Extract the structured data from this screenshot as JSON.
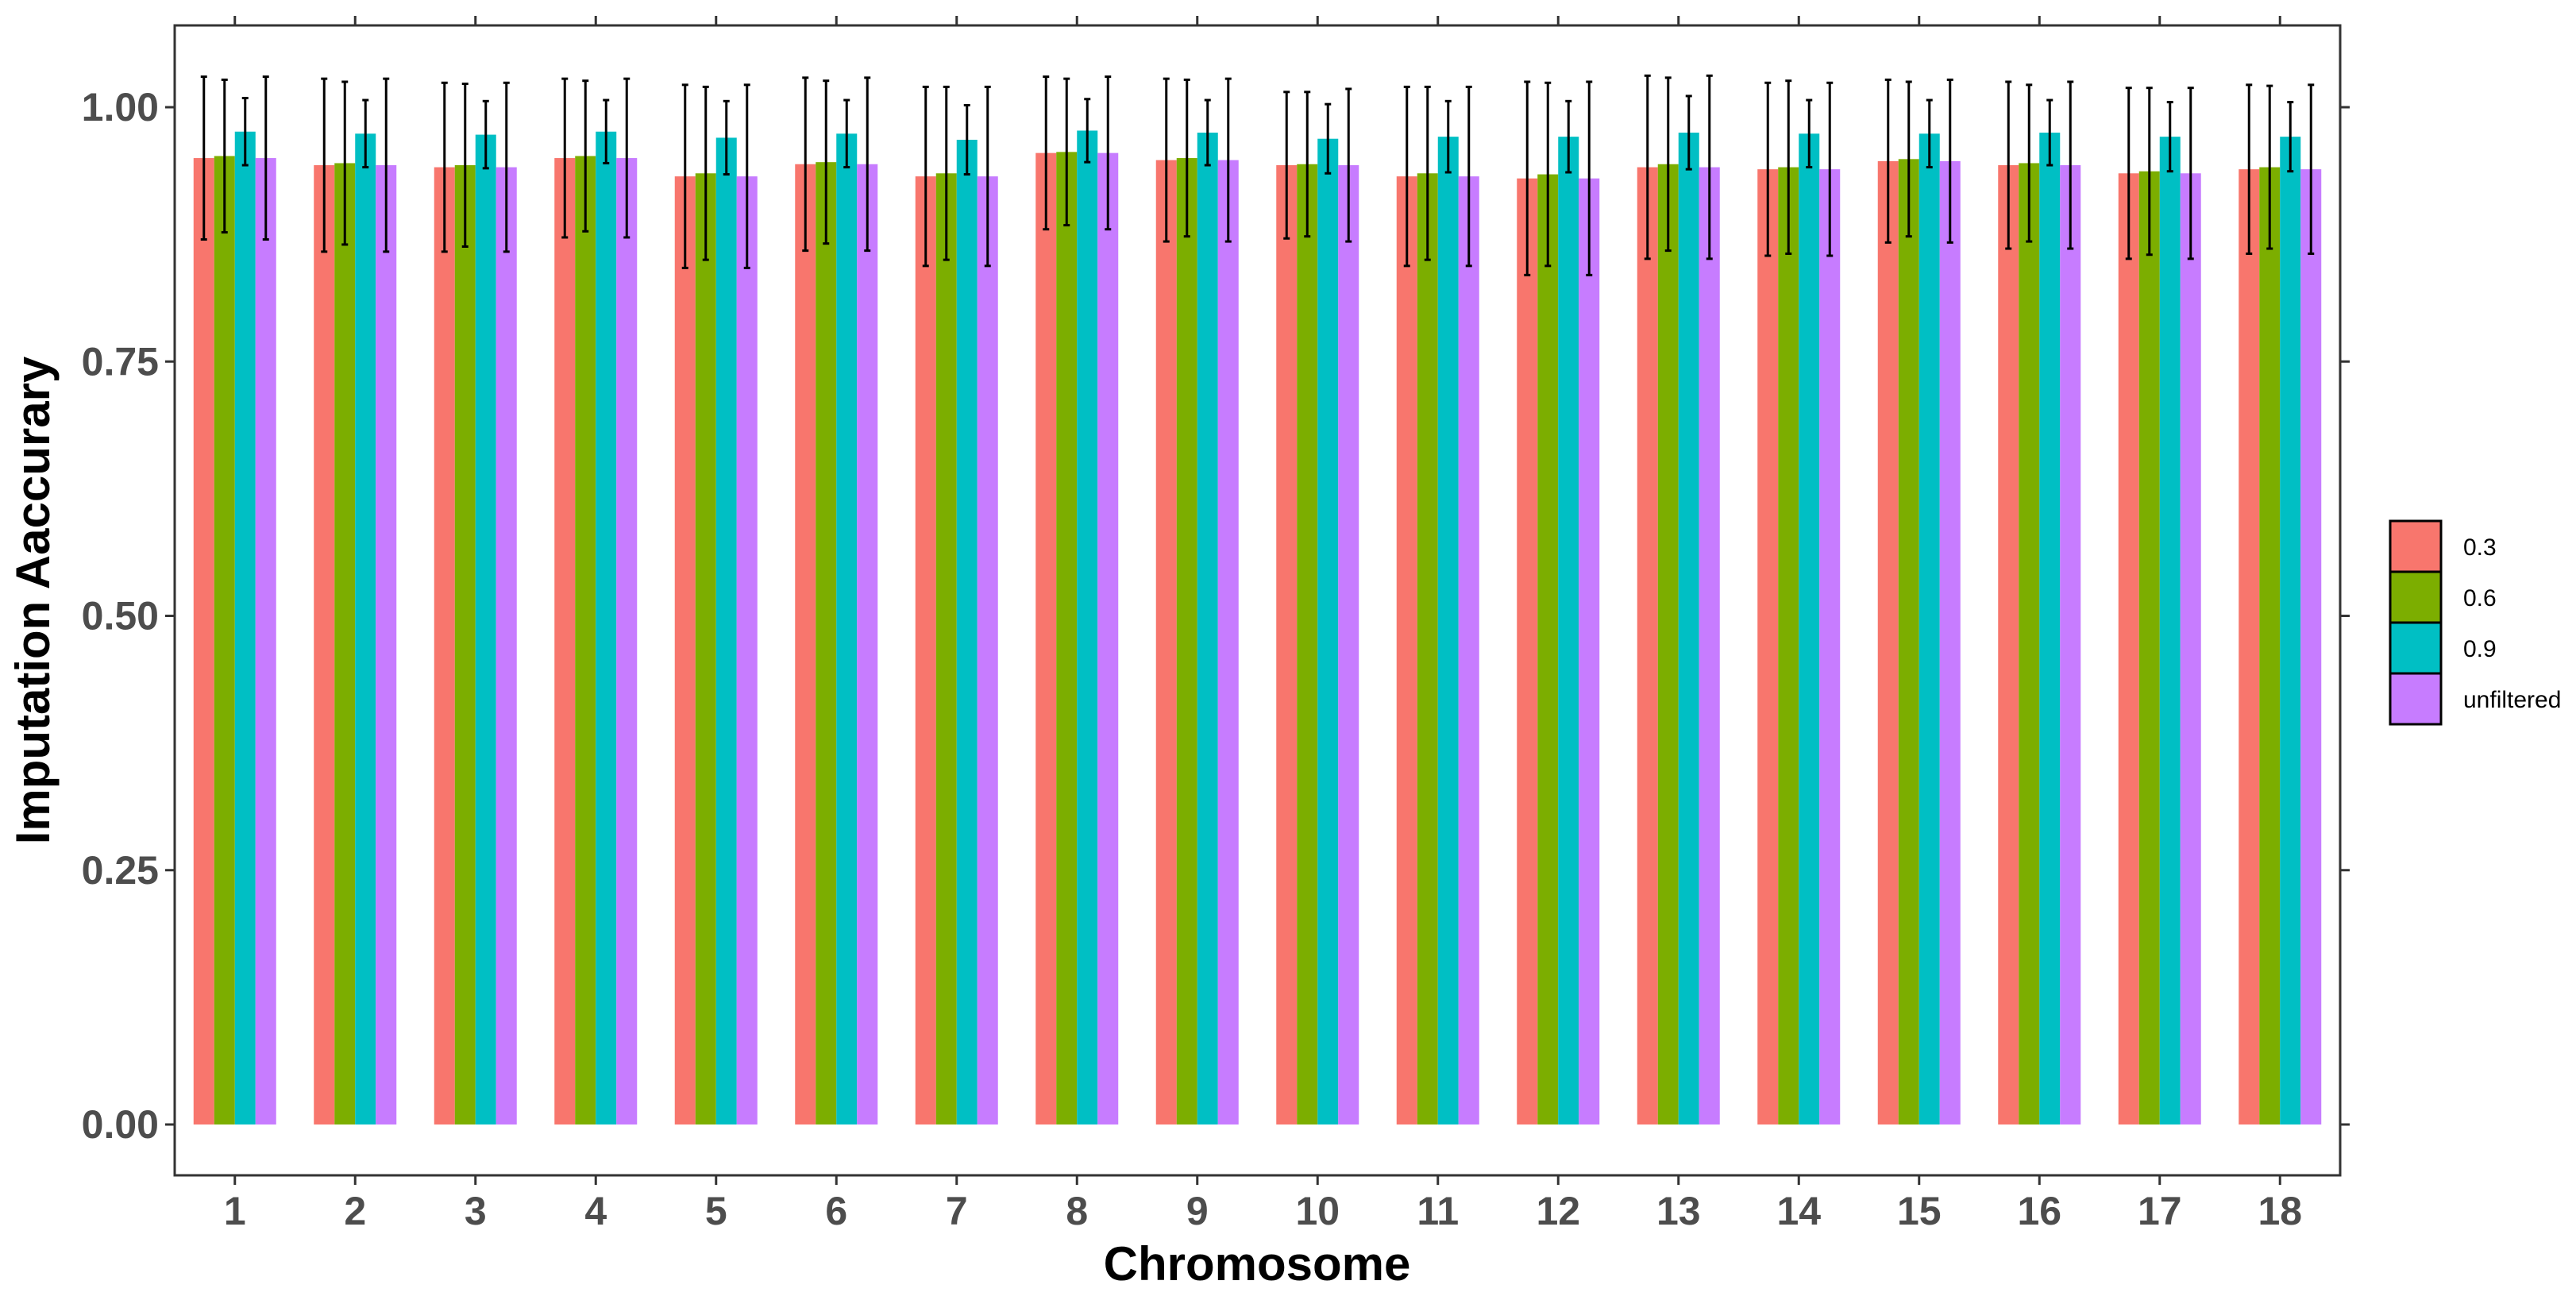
{
  "chart_data": {
    "type": "bar",
    "xlabel": "Chromosome",
    "ylabel": "Imputation Aaccurary",
    "ylim": [
      0,
      1.05
    ],
    "yticks": [
      "0.00",
      "0.25",
      "0.50",
      "0.75",
      "1.00"
    ],
    "categories": [
      "1",
      "2",
      "3",
      "4",
      "5",
      "6",
      "7",
      "8",
      "9",
      "10",
      "11",
      "12",
      "13",
      "14",
      "15",
      "16",
      "17",
      "18"
    ],
    "legend_position": "right",
    "grid": false,
    "series": [
      {
        "name": "0.3",
        "color": "#F8766D",
        "values": [
          0.95,
          0.943,
          0.941,
          0.95,
          0.932,
          0.944,
          0.932,
          0.955,
          0.948,
          0.943,
          0.932,
          0.93,
          0.941,
          0.939,
          0.947,
          0.943,
          0.935,
          0.939
        ],
        "errors": [
          0.08,
          0.085,
          0.083,
          0.078,
          0.09,
          0.085,
          0.088,
          0.075,
          0.08,
          0.072,
          0.088,
          0.095,
          0.09,
          0.085,
          0.08,
          0.082,
          0.084,
          0.083
        ]
      },
      {
        "name": "0.6",
        "color": "#7CAE00",
        "values": [
          0.952,
          0.945,
          0.943,
          0.952,
          0.935,
          0.946,
          0.935,
          0.956,
          0.95,
          0.944,
          0.935,
          0.934,
          0.944,
          0.941,
          0.949,
          0.945,
          0.937,
          0.941
        ],
        "errors": [
          0.075,
          0.08,
          0.08,
          0.074,
          0.085,
          0.08,
          0.085,
          0.072,
          0.077,
          0.071,
          0.085,
          0.09,
          0.085,
          0.085,
          0.076,
          0.077,
          0.082,
          0.08
        ]
      },
      {
        "name": "0.9",
        "color": "#00BFC4",
        "values": [
          0.976,
          0.974,
          0.973,
          0.976,
          0.97,
          0.974,
          0.968,
          0.977,
          0.975,
          0.969,
          0.971,
          0.971,
          0.975,
          0.974,
          0.974,
          0.975,
          0.971,
          0.971
        ],
        "errors": [
          0.033,
          0.033,
          0.033,
          0.031,
          0.036,
          0.033,
          0.034,
          0.031,
          0.032,
          0.034,
          0.035,
          0.035,
          0.036,
          0.033,
          0.033,
          0.032,
          0.034,
          0.034
        ]
      },
      {
        "name": "unfiltered",
        "color": "#C77CFF",
        "values": [
          0.95,
          0.943,
          0.941,
          0.95,
          0.932,
          0.944,
          0.932,
          0.955,
          0.948,
          0.943,
          0.932,
          0.93,
          0.941,
          0.939,
          0.947,
          0.943,
          0.935,
          0.939
        ],
        "errors": [
          0.08,
          0.085,
          0.083,
          0.078,
          0.09,
          0.085,
          0.088,
          0.075,
          0.08,
          0.075,
          0.088,
          0.095,
          0.09,
          0.085,
          0.08,
          0.082,
          0.084,
          0.083
        ]
      }
    ]
  }
}
